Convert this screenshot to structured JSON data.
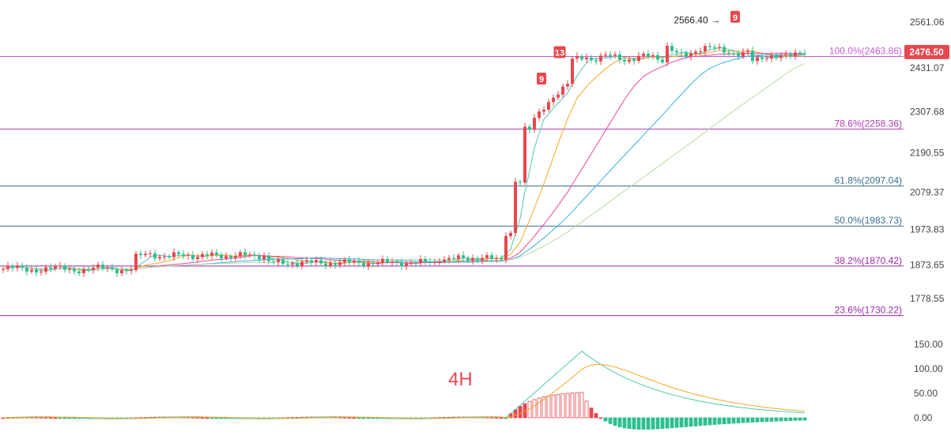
{
  "timeframe_label": "4H",
  "chart_data": {
    "type": "candlestick",
    "price_axis": {
      "ticks": [
        "2561.06",
        "2431.07",
        "2307.68",
        "2190.55",
        "2079.37",
        "1973.83",
        "1873.65",
        "1778.55"
      ],
      "tick_values": [
        2561.06,
        2431.07,
        2307.68,
        2190.55,
        2079.37,
        1973.83,
        1873.65,
        1778.55
      ]
    },
    "current_price": {
      "label": "2476.50",
      "value": 2476.5,
      "color": "#e8474f"
    },
    "fib_levels": [
      {
        "label": "100.0%(2463.86)",
        "value": 2463.86,
        "color": "#c55bd6"
      },
      {
        "label": "78.6%(2258.36)",
        "value": 2258.36,
        "color": "#b03ab8"
      },
      {
        "label": "61.8%(2097.04)",
        "value": 2097.04,
        "color": "#3a6f8f"
      },
      {
        "label": "50.0%(1983.73)",
        "value": 1983.73,
        "color": "#3a6f8f"
      },
      {
        "label": "38.2%(1870.42)",
        "value": 1870.42,
        "color": "#9c2aa8"
      },
      {
        "label": "23.6%(1730.22)",
        "value": 1730.22,
        "color": "#9c2aa8"
      }
    ],
    "annotations": [
      {
        "text": "2566.40 →",
        "value": 2566.4
      }
    ],
    "markers": [
      {
        "text": "9",
        "near_value": 2400,
        "color": "#e8474f"
      },
      {
        "text": "13",
        "near_value": 2475,
        "color": "#e8474f"
      },
      {
        "text": "9",
        "near_value": 2575,
        "color": "#e8474f"
      }
    ],
    "indicator": {
      "name": "MACD",
      "ticks": [
        "150.00",
        "100.00",
        "50.00",
        "0.00"
      ],
      "tick_values": [
        150,
        100,
        50,
        0
      ],
      "colors": {
        "macd": "#4cc9b0",
        "signal": "#f5a623",
        "hist_up": "#e8474f",
        "hist_down": "#2fbf8f"
      }
    },
    "colors": {
      "up": "#e8474f",
      "down": "#2fbf8f",
      "ma": [
        "#4cc9b0",
        "#f5a623",
        "#e8479e",
        "#3ab0e0",
        "#b7dca0"
      ]
    }
  }
}
